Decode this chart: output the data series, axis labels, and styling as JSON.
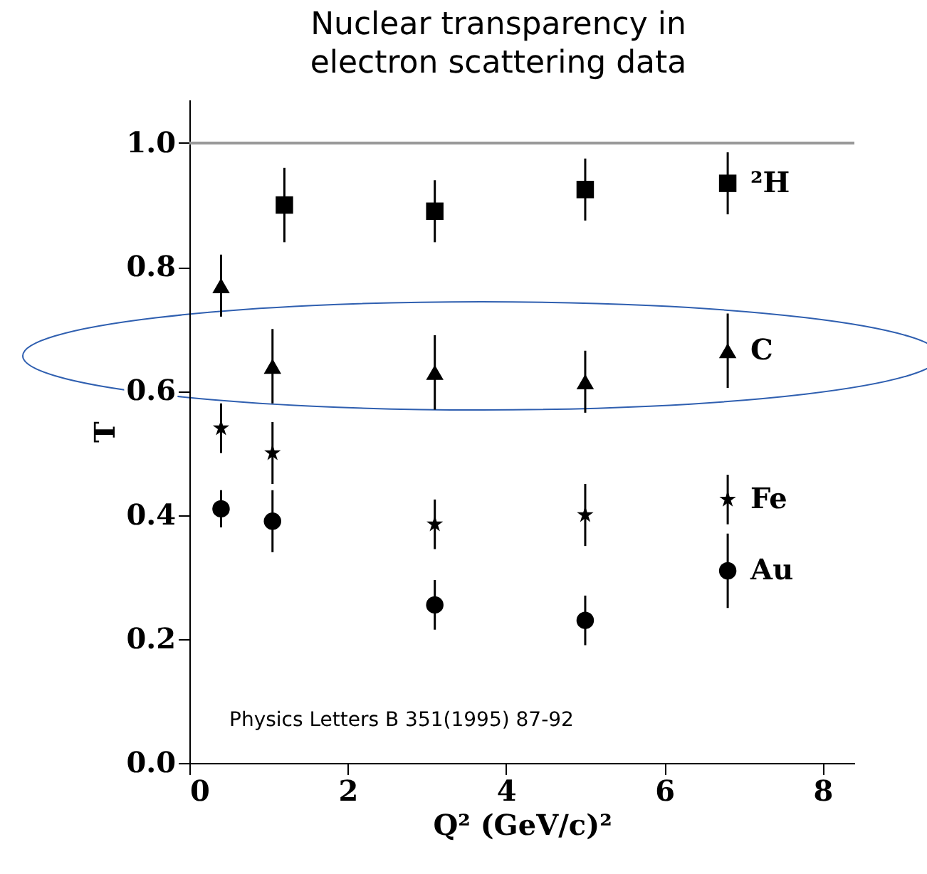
{
  "chart_data": {
    "type": "scatter",
    "title": "Nuclear transparency in electron scattering data",
    "xlabel": "Q² (GeV/c)²",
    "ylabel": "T",
    "xlim": [
      0,
      8.4
    ],
    "xticks": [
      0,
      2,
      4,
      6,
      8
    ],
    "ylim": [
      0,
      1.07
    ],
    "yticks": [
      {
        "value": 0,
        "label": "0.0"
      },
      0.2,
      0.4,
      0.6,
      0.8,
      {
        "value": 1,
        "label": "1.0"
      }
    ],
    "grid": false,
    "series": [
      {
        "name": "²H",
        "color": "#000000",
        "marker": "square",
        "x": [
          1.2,
          3.1,
          5.0,
          6.8
        ],
        "values": [
          0.9,
          0.89,
          0.925,
          0.935
        ],
        "errors": [
          0.06,
          0.05,
          0.05,
          0.05
        ]
      },
      {
        "name": "C",
        "color": "#000000",
        "marker": "triangle",
        "x": [
          0.4,
          1.05,
          3.1,
          5.0,
          6.8
        ],
        "values": [
          0.77,
          0.64,
          0.63,
          0.615,
          0.665
        ],
        "errors": [
          0.05,
          0.06,
          0.06,
          0.05,
          0.06
        ]
      },
      {
        "name": "Fe",
        "color": "#000000",
        "marker": "star",
        "x": [
          0.4,
          1.05,
          3.1,
          5.0,
          6.8
        ],
        "values": [
          0.54,
          0.5,
          0.385,
          0.4,
          0.425
        ],
        "errors": [
          0.04,
          0.05,
          0.04,
          0.05,
          0.04
        ]
      },
      {
        "name": "Au",
        "color": "#000000",
        "marker": "circle",
        "x": [
          0.4,
          1.05,
          3.1,
          5.0,
          6.8
        ],
        "values": [
          0.41,
          0.39,
          0.255,
          0.23,
          0.31
        ],
        "errors": [
          0.03,
          0.05,
          0.04,
          0.04,
          0.06
        ]
      }
    ],
    "ref_lines": [
      {
        "axis": "y",
        "value": 1.0,
        "color": "#999999"
      }
    ],
    "annotations": [
      "Physics Letters B 351(1995) 87-92"
    ]
  }
}
